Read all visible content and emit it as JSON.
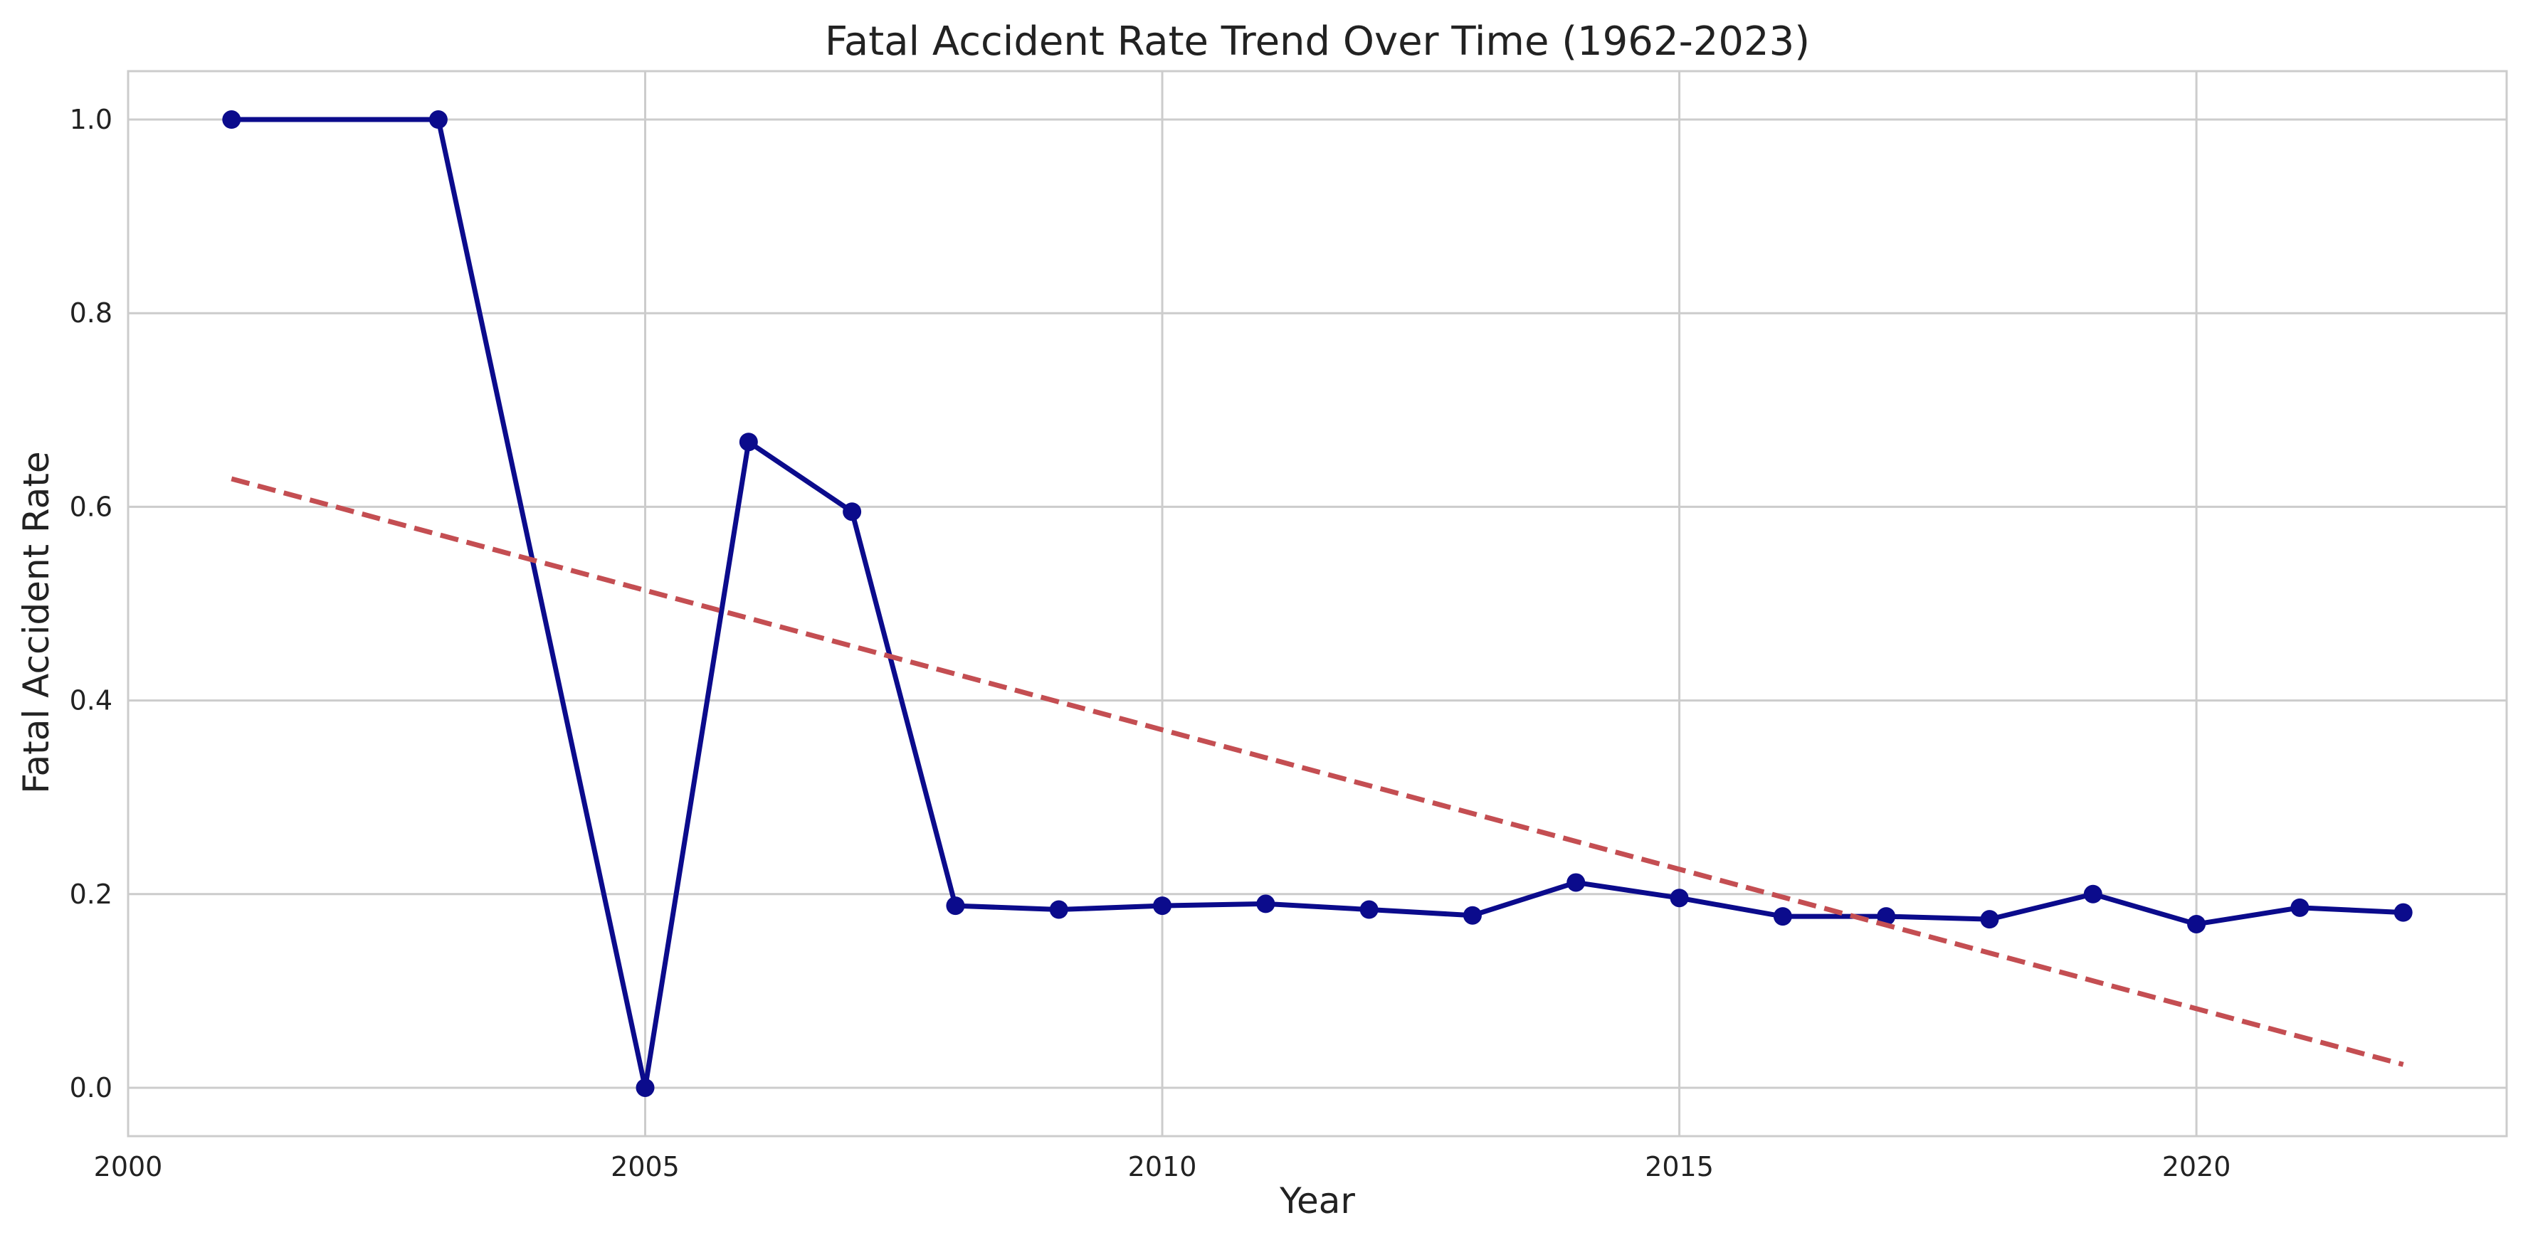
{
  "chart_data": {
    "type": "line",
    "title": "Fatal Accident Rate Trend Over Time (1962-2023)",
    "xlabel": "Year",
    "ylabel": "Fatal Accident Rate",
    "xlim": [
      2000,
      2023
    ],
    "ylim": [
      -0.05,
      1.05
    ],
    "x_ticks": [
      2000,
      2005,
      2010,
      2015,
      2020
    ],
    "y_ticks": [
      0.0,
      0.2,
      0.4,
      0.6,
      0.8,
      1.0
    ],
    "x_tick_labels": [
      "2000",
      "2005",
      "2010",
      "2015",
      "2020"
    ],
    "y_tick_labels": [
      "0.0",
      "0.2",
      "0.4",
      "0.6",
      "0.8",
      "1.0"
    ],
    "grid": true,
    "legend": "none",
    "series": [
      {
        "style": "solid-with-markers",
        "color": "#0b0b8c",
        "x": [
          2001,
          2003,
          2005,
          2006,
          2007,
          2008,
          2009,
          2010,
          2011,
          2012,
          2013,
          2014,
          2015,
          2016,
          2017,
          2018,
          2019,
          2020,
          2021,
          2022
        ],
        "y": [
          1.0,
          1.0,
          0.0,
          0.667,
          0.595,
          0.188,
          0.184,
          0.188,
          0.19,
          0.184,
          0.178,
          0.212,
          0.196,
          0.177,
          0.177,
          0.174,
          0.2,
          0.169,
          0.186,
          0.181
        ]
      },
      {
        "style": "dashed",
        "color": "#c44e52",
        "x": [
          2001,
          2022
        ],
        "y": [
          0.629,
          0.024
        ]
      }
    ]
  }
}
